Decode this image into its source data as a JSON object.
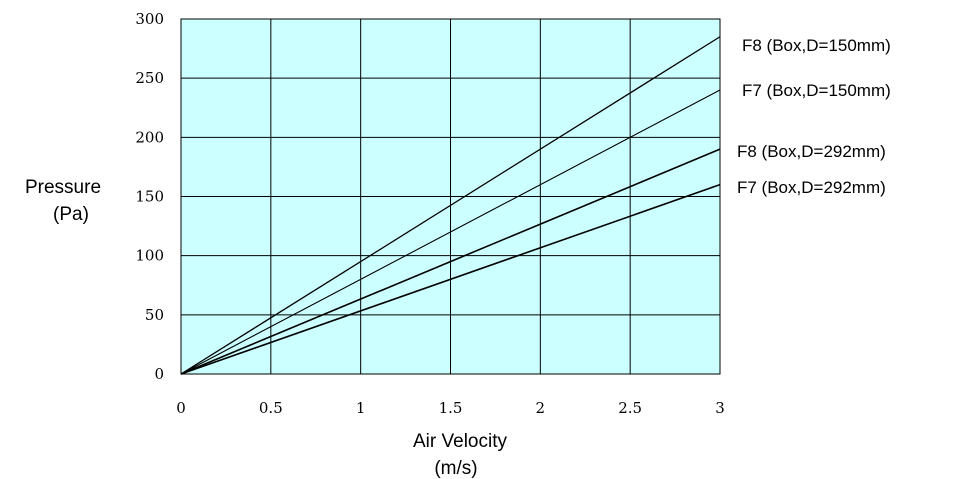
{
  "chart_data": {
    "type": "line",
    "title": "",
    "xlabel": "Air  Velocity",
    "xunit": "(m/s)",
    "ylabel": "Pressure",
    "yunit": "(Pa)",
    "xlim": [
      0,
      3
    ],
    "ylim": [
      0,
      300
    ],
    "x_ticks": [
      "0",
      "0.5",
      "1",
      "1.5",
      "2",
      "2.5",
      "3"
    ],
    "y_ticks": [
      "0",
      "50",
      "100",
      "150",
      "200",
      "250",
      "300"
    ],
    "grid": true,
    "plot_background": "#ccffff",
    "line_color": "#000000",
    "legend_placement": "right",
    "series": [
      {
        "name": "F8 (Box,D=150mm)",
        "x": [
          0,
          3
        ],
        "y": [
          0,
          285
        ]
      },
      {
        "name": "F7 (Box,D=150mm)",
        "x": [
          0,
          3
        ],
        "y": [
          0,
          240
        ]
      },
      {
        "name": "F8 (Box,D=292mm)",
        "x": [
          0,
          3
        ],
        "y": [
          0,
          190
        ]
      },
      {
        "name": "F7 (Box,D=292mm)",
        "x": [
          0,
          3
        ],
        "y": [
          0,
          160
        ]
      }
    ]
  }
}
